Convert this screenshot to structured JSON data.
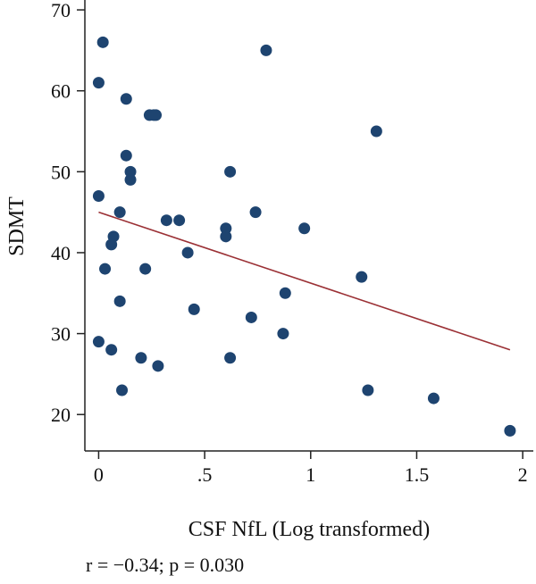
{
  "chart_data": {
    "type": "scatter",
    "xlabel": "CSF NfL (Log transformed)",
    "ylabel": "SDMT",
    "annotation": "r = −0.34; p = 0.030",
    "xlim": [
      -0.065,
      2.05
    ],
    "ylim": [
      15.5,
      71
    ],
    "x_ticks": [
      0,
      0.5,
      1,
      1.5,
      2
    ],
    "x_tick_labels": [
      "0",
      ".5",
      "1",
      "1.5",
      "2"
    ],
    "y_ticks": [
      20,
      30,
      40,
      50,
      60,
      70
    ],
    "y_tick_labels": [
      "20",
      "30",
      "40",
      "50",
      "60",
      "70"
    ],
    "grid": false,
    "colors": {
      "points": "#1e4470",
      "fit_line": "#9b3035",
      "axis": "#222222"
    },
    "points": [
      {
        "x": 0.02,
        "y": 66
      },
      {
        "x": 0.0,
        "y": 61
      },
      {
        "x": 0.13,
        "y": 59
      },
      {
        "x": 0.79,
        "y": 65
      },
      {
        "x": 0.24,
        "y": 57
      },
      {
        "x": 0.27,
        "y": 57
      },
      {
        "x": 0.26,
        "y": 57
      },
      {
        "x": 1.31,
        "y": 55
      },
      {
        "x": 0.13,
        "y": 52
      },
      {
        "x": 0.15,
        "y": 50
      },
      {
        "x": 0.15,
        "y": 49
      },
      {
        "x": 0.62,
        "y": 50
      },
      {
        "x": 0.0,
        "y": 47
      },
      {
        "x": 0.1,
        "y": 45
      },
      {
        "x": 0.74,
        "y": 45
      },
      {
        "x": 0.32,
        "y": 44
      },
      {
        "x": 0.38,
        "y": 44
      },
      {
        "x": 0.6,
        "y": 43
      },
      {
        "x": 0.97,
        "y": 43
      },
      {
        "x": 0.07,
        "y": 42
      },
      {
        "x": 0.6,
        "y": 42
      },
      {
        "x": 0.06,
        "y": 41
      },
      {
        "x": 0.42,
        "y": 40
      },
      {
        "x": 0.03,
        "y": 38
      },
      {
        "x": 0.22,
        "y": 38
      },
      {
        "x": 1.24,
        "y": 37
      },
      {
        "x": 0.88,
        "y": 35
      },
      {
        "x": 0.1,
        "y": 34
      },
      {
        "x": 0.45,
        "y": 33
      },
      {
        "x": 0.72,
        "y": 32
      },
      {
        "x": 0.87,
        "y": 30
      },
      {
        "x": 0.0,
        "y": 29
      },
      {
        "x": 0.06,
        "y": 28
      },
      {
        "x": 0.2,
        "y": 27
      },
      {
        "x": 0.62,
        "y": 27
      },
      {
        "x": 0.28,
        "y": 26
      },
      {
        "x": 0.11,
        "y": 23
      },
      {
        "x": 1.27,
        "y": 23
      },
      {
        "x": 1.58,
        "y": 22
      },
      {
        "x": 1.94,
        "y": 18
      }
    ],
    "fit_line": {
      "x": [
        0.0,
        1.94
      ],
      "y": [
        45,
        28
      ]
    }
  }
}
